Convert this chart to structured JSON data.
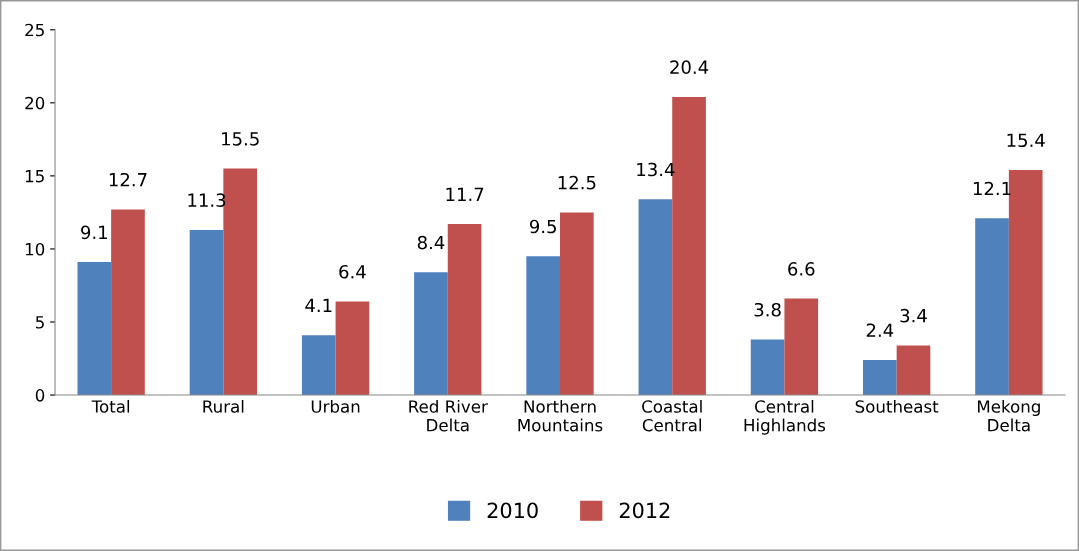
{
  "chart_data": {
    "type": "bar",
    "categories": [
      "Total",
      "Rural",
      "Urban",
      "Red River\nDelta",
      "Northern\nMountains",
      "Coastal\nCentral",
      "Central\nHighlands",
      "Southeast",
      "Mekong\nDelta"
    ],
    "series": [
      {
        "name": "2010",
        "color": "#4f81bd",
        "values": [
          9.1,
          11.3,
          4.1,
          8.4,
          9.5,
          13.4,
          3.8,
          2.4,
          12.1
        ]
      },
      {
        "name": "2012",
        "color": "#c0504d",
        "values": [
          12.7,
          15.5,
          6.4,
          11.7,
          12.5,
          20.4,
          6.6,
          3.4,
          15.4
        ]
      }
    ],
    "ylim": [
      0,
      25
    ],
    "yticks": [
      0,
      5,
      10,
      15,
      20,
      25
    ],
    "data_labels": true,
    "grid": false,
    "legend": "bottom"
  }
}
